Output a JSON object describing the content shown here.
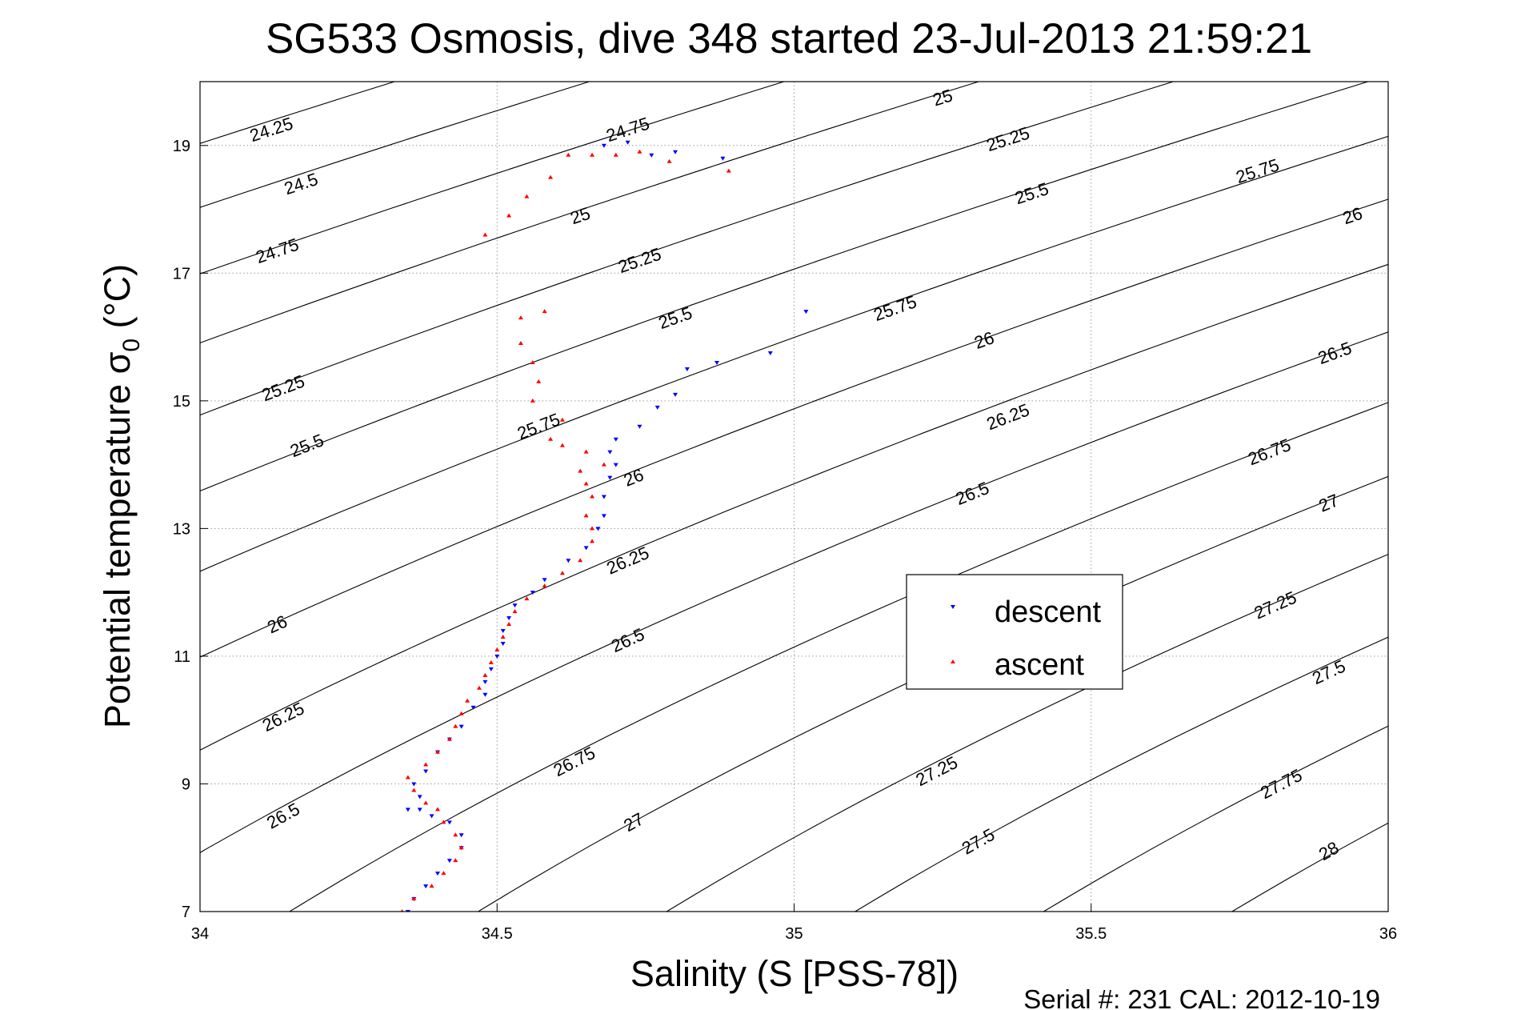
{
  "chart_data": {
    "type": "scatter",
    "title": "SG533 Osmosis, dive 348 started 23-Jul-2013 21:59:21",
    "xlabel": "Salinity (S [PSS-78])",
    "ylabel_main": "Potential temperature σ",
    "ylabel_sub": "0",
    "ylabel_unit": " (°C)",
    "xlim": [
      34,
      36
    ],
    "ylim": [
      7,
      20
    ],
    "x_ticks": [
      34,
      34.5,
      35,
      35.5,
      36
    ],
    "x_tick_labels": [
      "34",
      "34.5",
      "35",
      "35.5",
      "36"
    ],
    "y_ticks": [
      7,
      9,
      11,
      13,
      15,
      17,
      19
    ],
    "y_tick_labels": [
      "7",
      "9",
      "11",
      "13",
      "15",
      "17",
      "19"
    ],
    "grid": true,
    "legend_position": "right",
    "footer": "Serial #: 231  CAL: 2012-10-19",
    "contours": {
      "levels": [
        24.25,
        24.5,
        24.75,
        25,
        25.25,
        25.5,
        25.75,
        26,
        26.25,
        26.5,
        26.75,
        27,
        27.25,
        27.5,
        27.75,
        28
      ],
      "labels": [
        {
          "text": "24.25",
          "s": 34.12,
          "t": 19.25
        },
        {
          "text": "24.5",
          "s": 34.17,
          "t": 18.4
        },
        {
          "text": "24.75",
          "s": 34.13,
          "t": 17.35
        },
        {
          "text": "25.25",
          "s": 34.14,
          "t": 15.2
        },
        {
          "text": "25.5",
          "s": 34.18,
          "t": 14.3
        },
        {
          "text": "26",
          "s": 34.13,
          "t": 11.5
        },
        {
          "text": "26.25",
          "s": 34.14,
          "t": 10.05
        },
        {
          "text": "26.5",
          "s": 34.14,
          "t": 8.5
        },
        {
          "text": "24.75",
          "s": 34.72,
          "t": 19.25
        },
        {
          "text": "25",
          "s": 34.64,
          "t": 17.9
        },
        {
          "text": "25.25",
          "s": 34.74,
          "t": 17.2
        },
        {
          "text": "25.5",
          "s": 34.8,
          "t": 16.3
        },
        {
          "text": "25.75",
          "s": 34.57,
          "t": 14.6
        },
        {
          "text": "26",
          "s": 34.73,
          "t": 13.8
        },
        {
          "text": "26.25",
          "s": 34.72,
          "t": 12.5
        },
        {
          "text": "26.5",
          "s": 34.72,
          "t": 11.25
        },
        {
          "text": "26.75",
          "s": 34.63,
          "t": 9.35
        },
        {
          "text": "27",
          "s": 34.73,
          "t": 8.4
        },
        {
          "text": "25",
          "s": 35.25,
          "t": 19.75
        },
        {
          "text": "25.25",
          "s": 35.36,
          "t": 19.1
        },
        {
          "text": "25.5",
          "s": 35.4,
          "t": 18.25
        },
        {
          "text": "25.75",
          "s": 35.17,
          "t": 16.45
        },
        {
          "text": "26",
          "s": 35.32,
          "t": 15.95
        },
        {
          "text": "26.25",
          "s": 35.36,
          "t": 14.75
        },
        {
          "text": "26.5",
          "s": 35.3,
          "t": 13.55
        },
        {
          "text": "27.25",
          "s": 35.24,
          "t": 9.2
        },
        {
          "text": "27.5",
          "s": 35.31,
          "t": 8.1
        },
        {
          "text": "25.75",
          "s": 35.78,
          "t": 18.6
        },
        {
          "text": "26",
          "s": 35.94,
          "t": 17.9
        },
        {
          "text": "26.5",
          "s": 35.91,
          "t": 15.75
        },
        {
          "text": "26.75",
          "s": 35.8,
          "t": 14.2
        },
        {
          "text": "27",
          "s": 35.9,
          "t": 13.4
        },
        {
          "text": "27.25",
          "s": 35.81,
          "t": 11.8
        },
        {
          "text": "27.5",
          "s": 35.9,
          "t": 10.75
        },
        {
          "text": "27.75",
          "s": 35.82,
          "t": 9.0
        },
        {
          "text": "28",
          "s": 35.9,
          "t": 7.95
        }
      ]
    },
    "series": [
      {
        "name": "descent",
        "color": "#0000ff",
        "marker": "triangle-down",
        "points": [
          [
            34.35,
            7.0
          ],
          [
            34.36,
            7.2
          ],
          [
            34.38,
            7.4
          ],
          [
            34.4,
            7.6
          ],
          [
            34.42,
            7.8
          ],
          [
            34.44,
            8.0
          ],
          [
            34.44,
            8.2
          ],
          [
            34.42,
            8.4
          ],
          [
            34.39,
            8.5
          ],
          [
            34.37,
            8.6
          ],
          [
            34.35,
            8.6
          ],
          [
            34.37,
            8.8
          ],
          [
            34.36,
            9.0
          ],
          [
            34.38,
            9.2
          ],
          [
            34.4,
            9.5
          ],
          [
            34.42,
            9.7
          ],
          [
            34.44,
            9.9
          ],
          [
            34.46,
            10.2
          ],
          [
            34.48,
            10.4
          ],
          [
            34.48,
            10.6
          ],
          [
            34.49,
            10.8
          ],
          [
            34.5,
            11.0
          ],
          [
            34.51,
            11.2
          ],
          [
            34.51,
            11.4
          ],
          [
            34.52,
            11.6
          ],
          [
            34.53,
            11.8
          ],
          [
            34.56,
            12.0
          ],
          [
            34.58,
            12.2
          ],
          [
            34.62,
            12.5
          ],
          [
            34.65,
            12.7
          ],
          [
            34.67,
            13.0
          ],
          [
            34.68,
            13.2
          ],
          [
            34.68,
            13.5
          ],
          [
            34.69,
            13.8
          ],
          [
            34.7,
            14.0
          ],
          [
            34.69,
            14.2
          ],
          [
            34.7,
            14.4
          ],
          [
            34.74,
            14.6
          ],
          [
            34.77,
            14.9
          ],
          [
            34.8,
            15.1
          ],
          [
            34.82,
            15.5
          ],
          [
            34.87,
            15.6
          ],
          [
            34.96,
            15.75
          ],
          [
            35.02,
            16.4
          ],
          [
            34.68,
            19.0
          ],
          [
            34.72,
            19.05
          ],
          [
            34.76,
            18.85
          ],
          [
            34.8,
            18.9
          ],
          [
            34.88,
            18.8
          ]
        ]
      },
      {
        "name": "ascent",
        "color": "#ff0000",
        "marker": "triangle-up",
        "points": [
          [
            34.34,
            7.0
          ],
          [
            34.36,
            7.2
          ],
          [
            34.39,
            7.4
          ],
          [
            34.41,
            7.6
          ],
          [
            34.43,
            7.8
          ],
          [
            34.44,
            8.0
          ],
          [
            34.43,
            8.2
          ],
          [
            34.41,
            8.4
          ],
          [
            34.4,
            8.6
          ],
          [
            34.38,
            8.7
          ],
          [
            34.36,
            8.9
          ],
          [
            34.35,
            9.1
          ],
          [
            34.38,
            9.3
          ],
          [
            34.4,
            9.5
          ],
          [
            34.42,
            9.7
          ],
          [
            34.43,
            9.9
          ],
          [
            34.44,
            10.1
          ],
          [
            34.45,
            10.3
          ],
          [
            34.47,
            10.5
          ],
          [
            34.48,
            10.7
          ],
          [
            34.49,
            10.9
          ],
          [
            34.5,
            11.1
          ],
          [
            34.51,
            11.3
          ],
          [
            34.52,
            11.5
          ],
          [
            34.53,
            11.7
          ],
          [
            34.55,
            11.9
          ],
          [
            34.58,
            12.1
          ],
          [
            34.61,
            12.3
          ],
          [
            34.64,
            12.5
          ],
          [
            34.66,
            12.8
          ],
          [
            34.66,
            13.0
          ],
          [
            34.65,
            13.2
          ],
          [
            34.66,
            13.5
          ],
          [
            34.65,
            13.7
          ],
          [
            34.64,
            13.9
          ],
          [
            34.68,
            14.0
          ],
          [
            34.65,
            14.2
          ],
          [
            34.61,
            14.3
          ],
          [
            34.59,
            14.4
          ],
          [
            34.61,
            14.7
          ],
          [
            34.56,
            15.0
          ],
          [
            34.57,
            15.3
          ],
          [
            34.56,
            15.6
          ],
          [
            34.54,
            15.9
          ],
          [
            34.58,
            16.4
          ],
          [
            34.54,
            16.3
          ],
          [
            34.48,
            17.6
          ],
          [
            34.52,
            17.9
          ],
          [
            34.55,
            18.2
          ],
          [
            34.59,
            18.5
          ],
          [
            34.62,
            18.85
          ],
          [
            34.66,
            18.85
          ],
          [
            34.7,
            18.85
          ],
          [
            34.74,
            18.9
          ],
          [
            34.79,
            18.75
          ],
          [
            34.89,
            18.6
          ]
        ]
      }
    ]
  }
}
